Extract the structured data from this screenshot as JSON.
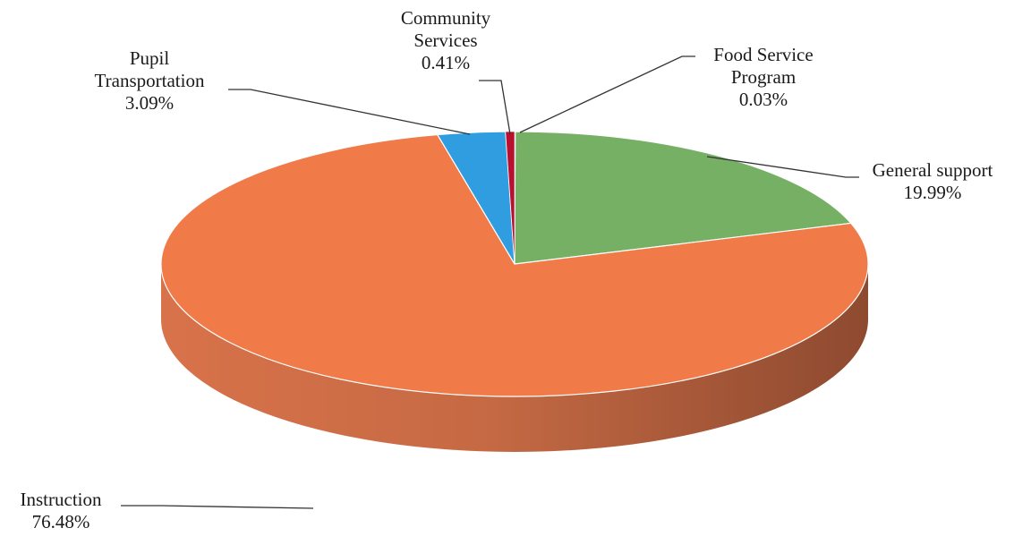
{
  "chart_data": {
    "type": "pie",
    "style": "3d",
    "title": "",
    "slices": [
      {
        "name": "Food Service Program",
        "value": 0.03,
        "label_lines": [
          "Food Service",
          "Program"
        ],
        "value_label": "0.03%",
        "color": "#c0143c"
      },
      {
        "name": "General support",
        "value": 19.99,
        "label_lines": [
          "General support"
        ],
        "value_label": "19.99%",
        "color": "#76b064"
      },
      {
        "name": "Instruction",
        "value": 76.48,
        "label_lines": [
          "Instruction"
        ],
        "value_label": "76.48%",
        "color": "#f07a48"
      },
      {
        "name": "Pupil Transportation",
        "value": 3.09,
        "label_lines": [
          "Pupil",
          "Transportation"
        ],
        "value_label": "3.09%",
        "color": "#2f9de0"
      },
      {
        "name": "Community Services",
        "value": 0.41,
        "label_lines": [
          "Community",
          "Services"
        ],
        "value_label": "0.41%",
        "color": "#b8102e"
      }
    ]
  }
}
